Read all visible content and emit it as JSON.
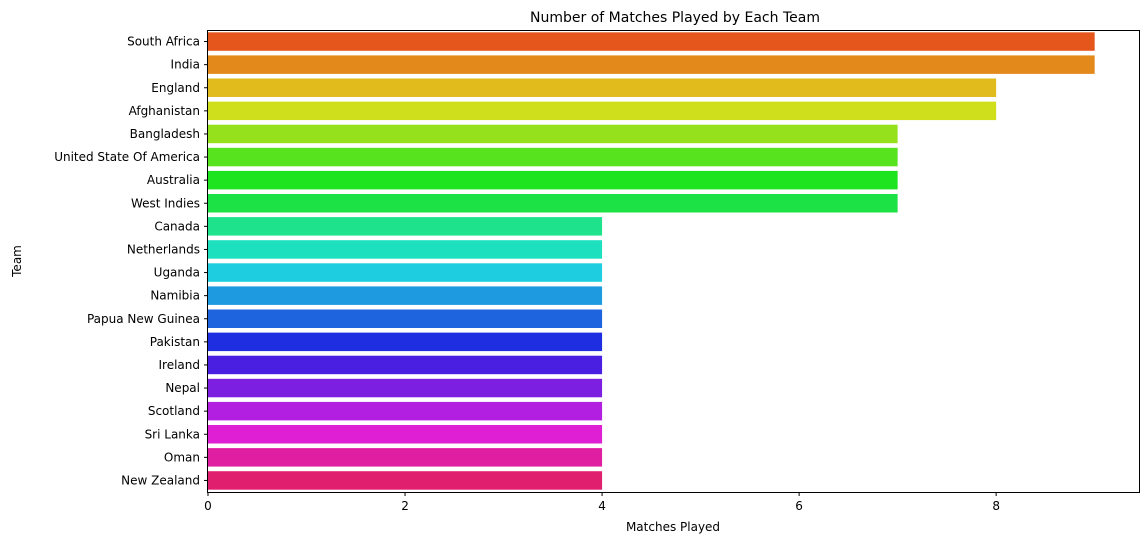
{
  "chart_data": {
    "type": "bar",
    "orientation": "horizontal",
    "title": "Number of Matches Played by Each Team",
    "xlabel": "Matches Played",
    "ylabel": "Team",
    "xlim": [
      0,
      9.45
    ],
    "xticks": [
      0,
      2,
      4,
      6,
      8
    ],
    "grid": false,
    "categories": [
      "South Africa",
      "India",
      "England",
      "Afghanistan",
      "Bangladesh",
      "United State Of America",
      "Australia",
      "West Indies",
      "Canada",
      "Netherlands",
      "Uganda",
      "Namibia",
      "Papua New Guinea",
      "Pakistan",
      "Ireland",
      "Nepal",
      "Scotland",
      "Sri Lanka",
      "Oman",
      "New Zealand"
    ],
    "values": [
      9,
      9,
      8,
      8,
      7,
      7,
      7,
      7,
      4,
      4,
      4,
      4,
      4,
      4,
      4,
      4,
      4,
      4,
      4,
      4
    ],
    "colors": [
      "#e4561c",
      "#e3891b",
      "#e1bb1b",
      "#cfdf1b",
      "#95e11c",
      "#57e41e",
      "#1de41f",
      "#1de246",
      "#1ee28c",
      "#1de0be",
      "#1ecde0",
      "#1d9ae0",
      "#1e64df",
      "#1f2ee0",
      "#4b1fe2",
      "#7c1fe1",
      "#b31fe0",
      "#df1fd4",
      "#e01ea2",
      "#e01f6e"
    ]
  }
}
